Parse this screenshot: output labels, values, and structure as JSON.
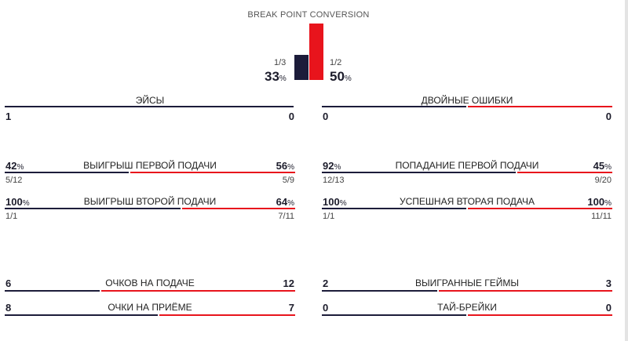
{
  "colors": {
    "player1": "#1c1c3a",
    "player2": "#e8141c",
    "background": "#ffffff"
  },
  "break_point": {
    "title": "BREAK POINT CONVERSION",
    "p1_fraction": "1/3",
    "p1_percent": "33",
    "p1_value": 0.33,
    "p2_fraction": "1/2",
    "p2_percent": "50",
    "p2_value": 0.5,
    "unit": "%"
  },
  "stats": [
    {
      "id": "aces",
      "title": "ЭЙСЫ",
      "left": "1",
      "right": "0",
      "left_share": 1.0
    },
    {
      "id": "double-faults",
      "title": "ДВОЙНЫЕ ОШИБКИ",
      "left": "0",
      "right": "0",
      "left_share": 0.5
    },
    {
      "id": "first-serve-won",
      "title": "ВЫИГРЫШ ПЕРВОЙ ПОДАЧИ",
      "left": "42",
      "right": "56",
      "left_unit": "%",
      "right_unit": "%",
      "left_sub": "5/12",
      "right_sub": "5/9",
      "left_share": 0.43
    },
    {
      "id": "first-serve-in",
      "title": "ПОПАДАНИЕ ПЕРВОЙ ПОДАЧИ",
      "left": "92",
      "right": "45",
      "left_unit": "%",
      "right_unit": "%",
      "left_sub": "12/13",
      "right_sub": "9/20",
      "left_share": 0.67
    },
    {
      "id": "second-serve-won",
      "title": "ВЫИГРЫШ ВТОРОЙ ПОДАЧИ",
      "left": "100",
      "right": "64",
      "left_unit": "%",
      "right_unit": "%",
      "left_sub": "1/1",
      "right_sub": "7/11",
      "left_share": 0.61
    },
    {
      "id": "second-serve-in",
      "title": "УСПЕШНАЯ ВТОРАЯ ПОДАЧА",
      "left": "100",
      "right": "100",
      "left_unit": "%",
      "right_unit": "%",
      "left_sub": "1/1",
      "right_sub": "11/11",
      "left_share": 0.5
    },
    {
      "id": "service-points",
      "title": "ОЧКОВ НА ПОДАЧЕ",
      "left": "6",
      "right": "12",
      "left_share": 0.33
    },
    {
      "id": "games-won",
      "title": "ВЫИГРАННЫЕ ГЕЙМЫ",
      "left": "2",
      "right": "3",
      "left_share": 0.4
    },
    {
      "id": "return-points",
      "title": "ОЧКИ НА ПРИЁМЕ",
      "left": "8",
      "right": "7",
      "left_share": 0.53
    },
    {
      "id": "tie-breaks",
      "title": "ТАЙ-БРЕЙКИ",
      "left": "0",
      "right": "0",
      "left_share": 0.5
    }
  ]
}
